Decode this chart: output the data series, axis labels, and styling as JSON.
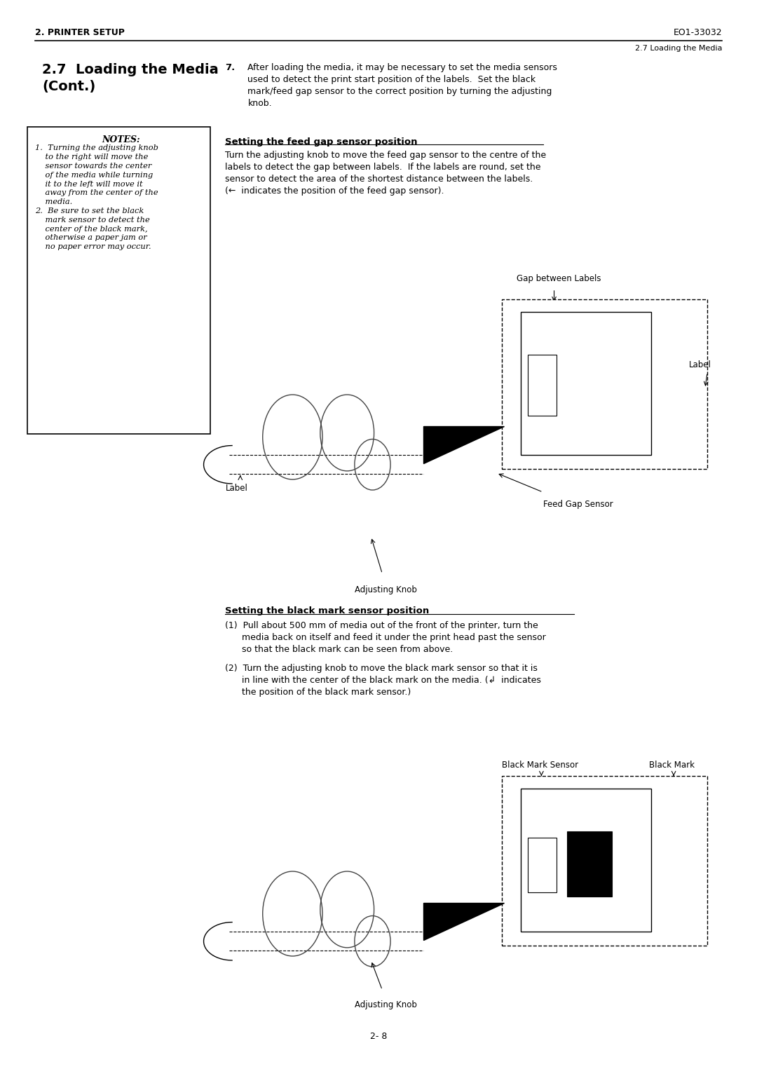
{
  "page_width": 10.8,
  "page_height": 15.25,
  "bg_color": "#ffffff",
  "header_left": "2. PRINTER SETUP",
  "header_right": "EO1-33032",
  "header_sub": "2.7 Loading the Media",
  "section_title": "2.7  Loading the Media\n(Cont.)",
  "notes_title": "NOTES:",
  "feed_gap_heading": "Setting the feed gap sensor position",
  "feed_gap_label_gap": "Gap between Labels",
  "feed_gap_label_label": "Label",
  "feed_gap_label_sensor": "Feed Gap Sensor",
  "feed_gap_label_label2": "Label",
  "feed_gap_label_knob": "Adjusting Knob",
  "black_mark_heading": "Setting the black mark sensor position",
  "black_mark_label_sensor": "Black Mark Sensor",
  "black_mark_label_mark": "Black Mark",
  "black_mark_label_knob": "Adjusting Knob",
  "page_number": "2- 8",
  "text_color": "#000000",
  "line_color": "#000000"
}
